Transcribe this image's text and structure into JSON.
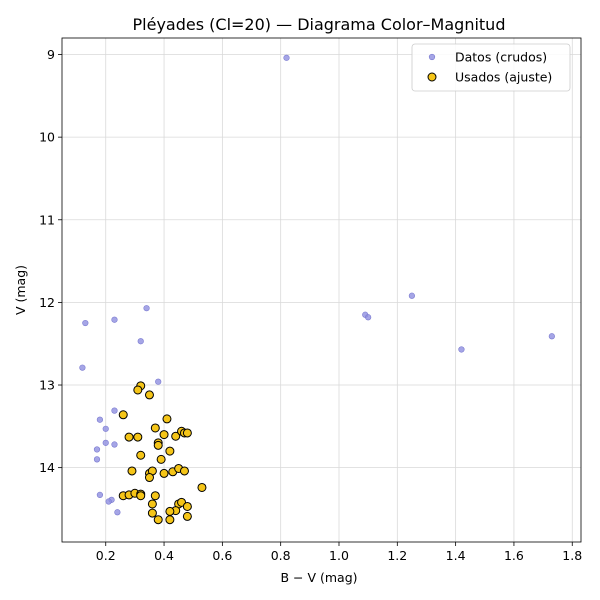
{
  "chart_data": {
    "type": "scatter",
    "title": "Pléyades (Cl=20) — Diagrama Color–Magnitud",
    "xlabel": "B − V (mag)",
    "ylabel": "V (mag)",
    "xlim": [
      0.05,
      1.83
    ],
    "ylim": [
      14.9,
      8.8
    ],
    "y_inverted": true,
    "grid": true,
    "legend_position": "top-right",
    "x_ticks": [
      0.2,
      0.4,
      0.6,
      0.8,
      1.0,
      1.2,
      1.4,
      1.6,
      1.8
    ],
    "x_tick_labels": [
      "0.2",
      "0.4",
      "0.6",
      "0.8",
      "1.0",
      "1.2",
      "1.4",
      "1.6",
      "1.8"
    ],
    "y_ticks": [
      9,
      10,
      11,
      12,
      13,
      14
    ],
    "y_tick_labels": [
      "9",
      "10",
      "11",
      "12",
      "13",
      "14"
    ],
    "series": [
      {
        "name": "Datos (crudos)",
        "color": "#8f8fe0",
        "edge": "#7a7ad0",
        "points": [
          [
            0.82,
            9.04
          ],
          [
            1.25,
            11.92
          ],
          [
            1.09,
            12.15
          ],
          [
            1.1,
            12.18
          ],
          [
            1.73,
            12.41
          ],
          [
            1.42,
            12.57
          ],
          [
            0.13,
            12.25
          ],
          [
            0.23,
            12.21
          ],
          [
            0.34,
            12.07
          ],
          [
            0.32,
            12.47
          ],
          [
            0.12,
            12.79
          ],
          [
            0.38,
            12.96
          ],
          [
            0.23,
            13.31
          ],
          [
            0.18,
            13.42
          ],
          [
            0.2,
            13.53
          ],
          [
            0.2,
            13.7
          ],
          [
            0.23,
            13.72
          ],
          [
            0.17,
            13.78
          ],
          [
            0.17,
            13.9
          ],
          [
            0.18,
            14.33
          ],
          [
            0.22,
            14.39
          ],
          [
            0.21,
            14.41
          ],
          [
            0.24,
            14.54
          ],
          [
            0.32,
            13.01
          ],
          [
            0.35,
            13.12
          ],
          [
            0.26,
            13.36
          ],
          [
            0.31,
            13.06
          ],
          [
            0.41,
            13.41
          ],
          [
            0.37,
            13.52
          ],
          [
            0.4,
            13.6
          ],
          [
            0.44,
            13.62
          ],
          [
            0.46,
            13.56
          ],
          [
            0.47,
            13.58
          ],
          [
            0.48,
            13.58
          ],
          [
            0.28,
            13.63
          ],
          [
            0.31,
            13.63
          ],
          [
            0.38,
            13.7
          ],
          [
            0.38,
            13.73
          ],
          [
            0.42,
            13.8
          ],
          [
            0.32,
            13.85
          ],
          [
            0.39,
            13.9
          ],
          [
            0.29,
            14.04
          ],
          [
            0.35,
            14.07
          ],
          [
            0.36,
            14.04
          ],
          [
            0.35,
            14.12
          ],
          [
            0.4,
            14.07
          ],
          [
            0.43,
            14.05
          ],
          [
            0.45,
            14.01
          ],
          [
            0.47,
            14.04
          ],
          [
            0.53,
            14.24
          ],
          [
            0.26,
            14.34
          ],
          [
            0.28,
            14.33
          ],
          [
            0.3,
            14.31
          ],
          [
            0.32,
            14.32
          ],
          [
            0.32,
            14.34
          ],
          [
            0.37,
            14.34
          ],
          [
            0.36,
            14.44
          ],
          [
            0.45,
            14.44
          ],
          [
            0.46,
            14.42
          ],
          [
            0.48,
            14.47
          ],
          [
            0.44,
            14.52
          ],
          [
            0.42,
            14.53
          ],
          [
            0.36,
            14.55
          ],
          [
            0.38,
            14.63
          ],
          [
            0.42,
            14.63
          ],
          [
            0.48,
            14.59
          ]
        ]
      },
      {
        "name": "Usados (ajuste)",
        "color": "#f5c518",
        "edge": "#000000",
        "points": [
          [
            0.32,
            13.01
          ],
          [
            0.31,
            13.06
          ],
          [
            0.35,
            13.12
          ],
          [
            0.26,
            13.36
          ],
          [
            0.41,
            13.41
          ],
          [
            0.37,
            13.52
          ],
          [
            0.4,
            13.6
          ],
          [
            0.44,
            13.62
          ],
          [
            0.46,
            13.56
          ],
          [
            0.47,
            13.58
          ],
          [
            0.48,
            13.58
          ],
          [
            0.28,
            13.63
          ],
          [
            0.31,
            13.63
          ],
          [
            0.38,
            13.7
          ],
          [
            0.38,
            13.73
          ],
          [
            0.42,
            13.8
          ],
          [
            0.32,
            13.85
          ],
          [
            0.39,
            13.9
          ],
          [
            0.29,
            14.04
          ],
          [
            0.35,
            14.07
          ],
          [
            0.36,
            14.04
          ],
          [
            0.35,
            14.12
          ],
          [
            0.4,
            14.07
          ],
          [
            0.43,
            14.05
          ],
          [
            0.45,
            14.01
          ],
          [
            0.47,
            14.04
          ],
          [
            0.53,
            14.24
          ],
          [
            0.26,
            14.34
          ],
          [
            0.28,
            14.33
          ],
          [
            0.3,
            14.31
          ],
          [
            0.32,
            14.32
          ],
          [
            0.32,
            14.34
          ],
          [
            0.37,
            14.34
          ],
          [
            0.36,
            14.44
          ],
          [
            0.45,
            14.44
          ],
          [
            0.46,
            14.42
          ],
          [
            0.48,
            14.47
          ],
          [
            0.44,
            14.52
          ],
          [
            0.42,
            14.53
          ],
          [
            0.36,
            14.55
          ],
          [
            0.38,
            14.63
          ],
          [
            0.42,
            14.63
          ],
          [
            0.48,
            14.59
          ]
        ]
      }
    ]
  }
}
